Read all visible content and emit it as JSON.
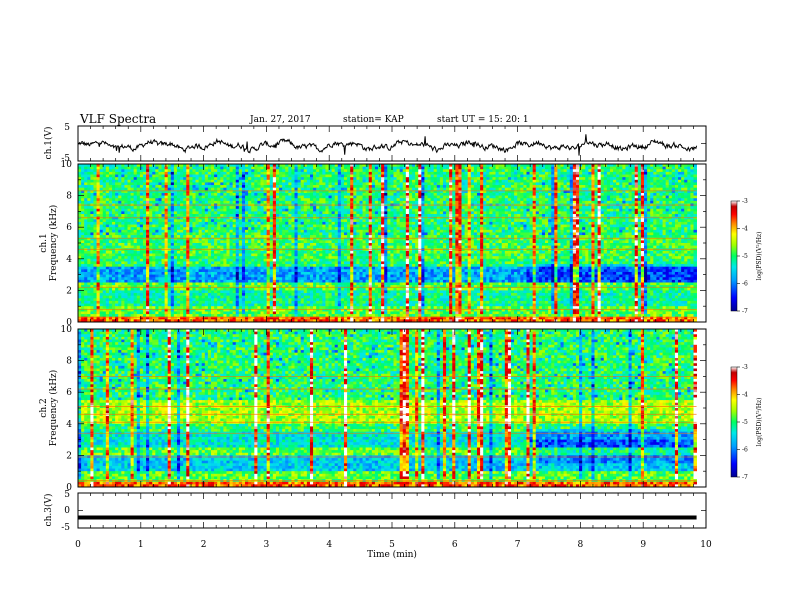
{
  "header": {
    "title": "VLF Spectra",
    "date": "Jan. 27, 2017",
    "station": "station= KAP",
    "start_ut": "start  UT  =   15: 20: 1"
  },
  "chart_data": [
    {
      "type": "line",
      "panel": "ch1-waveform",
      "ylabel": "ch.1(V)",
      "yticks": [
        "5",
        "-5"
      ],
      "ylim": [
        -5,
        5
      ],
      "xlim": [
        0,
        10
      ],
      "description_values": "noisy waveform oscillating roughly between -3 and +2 V over 0-9.8 min"
    },
    {
      "type": "heatmap",
      "panel": "ch1-spectrogram",
      "ylabel_line1": "ch.1",
      "ylabel_line2": "Frequency (kHz)",
      "yticks": [
        "0",
        "2",
        "4",
        "6",
        "8",
        "10"
      ],
      "ylim": [
        0,
        10
      ],
      "xlim": [
        0,
        10
      ],
      "colorbar": {
        "label": "log(PSD)(V²/Hz)",
        "ticks": [
          "-3",
          "-4",
          "-5",
          "-6",
          "-7"
        ],
        "range": [
          -7,
          -3
        ],
        "colormap": [
          "#0000a0",
          "#0000ff",
          "#00a0ff",
          "#00e0e0",
          "#00ff60",
          "#a0ff00",
          "#ffff00",
          "#ff8000",
          "#ff0000",
          "#c00000",
          "#ffffff"
        ]
      }
    },
    {
      "type": "heatmap",
      "panel": "ch2-spectrogram",
      "ylabel_line1": "ch.2",
      "ylabel_line2": "Frequency (kHz)",
      "yticks": [
        "0",
        "2",
        "4",
        "6",
        "8",
        "10"
      ],
      "ylim": [
        0,
        10
      ],
      "xlim": [
        0,
        10
      ],
      "colorbar": {
        "label": "log(PSD)(V²/Hz)",
        "ticks": [
          "-3",
          "-4",
          "-5",
          "-6",
          "-7"
        ],
        "range": [
          -7,
          -3
        ]
      }
    },
    {
      "type": "line",
      "panel": "ch3-waveform",
      "ylabel": "ch.3(V)",
      "yticks": [
        "5",
        "0",
        "-5"
      ],
      "ylim": [
        -5,
        5
      ],
      "constant_value": -2,
      "xlim": [
        0,
        10
      ]
    }
  ],
  "xaxis": {
    "label": "Time  (min)",
    "ticks": [
      "0",
      "1",
      "2",
      "3",
      "4",
      "5",
      "6",
      "7",
      "8",
      "9",
      "10"
    ]
  }
}
